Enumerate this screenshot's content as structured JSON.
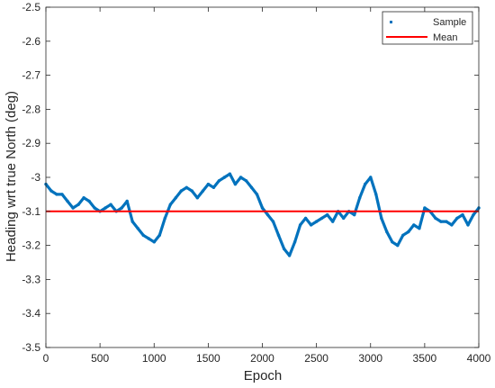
{
  "chart_data": {
    "type": "line",
    "title": "",
    "xlabel": "Epoch",
    "ylabel": "Heading wrt true North (deg)",
    "xlim": [
      0,
      4000
    ],
    "ylim": [
      -3.5,
      -2.5
    ],
    "xticks": [
      0,
      500,
      1000,
      1500,
      2000,
      2500,
      3000,
      3500,
      4000
    ],
    "xtick_labels": [
      "0",
      "500",
      "1000",
      "1500",
      "2000",
      "2500",
      "3000",
      "3500",
      "4000"
    ],
    "yticks": [
      -3.5,
      -3.4,
      -3.3,
      -3.2,
      -3.1,
      -3.0,
      -2.9,
      -2.8,
      -2.7,
      -2.6,
      -2.5
    ],
    "ytick_labels": [
      "-3.5",
      "-3.4",
      "-3.3",
      "-3.2",
      "-3.1",
      "-3",
      "-2.9",
      "-2.8",
      "-2.7",
      "-2.6",
      "-2.5"
    ],
    "grid": false,
    "legend_position": "top-right",
    "series": [
      {
        "name": "Sample",
        "style": "points",
        "color": "#0072BD",
        "x": [
          0,
          50,
          100,
          150,
          200,
          250,
          300,
          350,
          400,
          450,
          500,
          550,
          600,
          650,
          700,
          750,
          800,
          850,
          900,
          950,
          1000,
          1050,
          1100,
          1150,
          1200,
          1250,
          1300,
          1350,
          1400,
          1450,
          1500,
          1550,
          1600,
          1650,
          1700,
          1750,
          1800,
          1850,
          1900,
          1950,
          2000,
          2050,
          2100,
          2150,
          2200,
          2250,
          2300,
          2350,
          2400,
          2450,
          2500,
          2550,
          2600,
          2650,
          2700,
          2750,
          2800,
          2850,
          2900,
          2950,
          3000,
          3050,
          3100,
          3150,
          3200,
          3250,
          3300,
          3350,
          3400,
          3450,
          3500,
          3550,
          3600,
          3650,
          3700,
          3750,
          3800,
          3850,
          3900,
          3950,
          4000
        ],
        "y": [
          -3.02,
          -3.04,
          -3.05,
          -3.05,
          -3.07,
          -3.09,
          -3.08,
          -3.06,
          -3.07,
          -3.09,
          -3.1,
          -3.09,
          -3.08,
          -3.1,
          -3.09,
          -3.07,
          -3.13,
          -3.15,
          -3.17,
          -3.18,
          -3.19,
          -3.17,
          -3.12,
          -3.08,
          -3.06,
          -3.04,
          -3.03,
          -3.04,
          -3.06,
          -3.04,
          -3.02,
          -3.03,
          -3.01,
          -3.0,
          -2.99,
          -3.02,
          -3.0,
          -3.01,
          -3.03,
          -3.05,
          -3.09,
          -3.11,
          -3.13,
          -3.17,
          -3.21,
          -3.23,
          -3.19,
          -3.14,
          -3.12,
          -3.14,
          -3.13,
          -3.12,
          -3.11,
          -3.13,
          -3.1,
          -3.12,
          -3.1,
          -3.11,
          -3.06,
          -3.02,
          -3.0,
          -3.05,
          -3.12,
          -3.16,
          -3.19,
          -3.2,
          -3.17,
          -3.16,
          -3.14,
          -3.15,
          -3.09,
          -3.1,
          -3.12,
          -3.13,
          -3.13,
          -3.14,
          -3.12,
          -3.11,
          -3.14,
          -3.11,
          -3.09
        ]
      },
      {
        "name": "Mean",
        "style": "line",
        "color": "#FF0000",
        "x": [
          0,
          4000
        ],
        "y": [
          -3.1,
          -3.1
        ]
      }
    ]
  }
}
